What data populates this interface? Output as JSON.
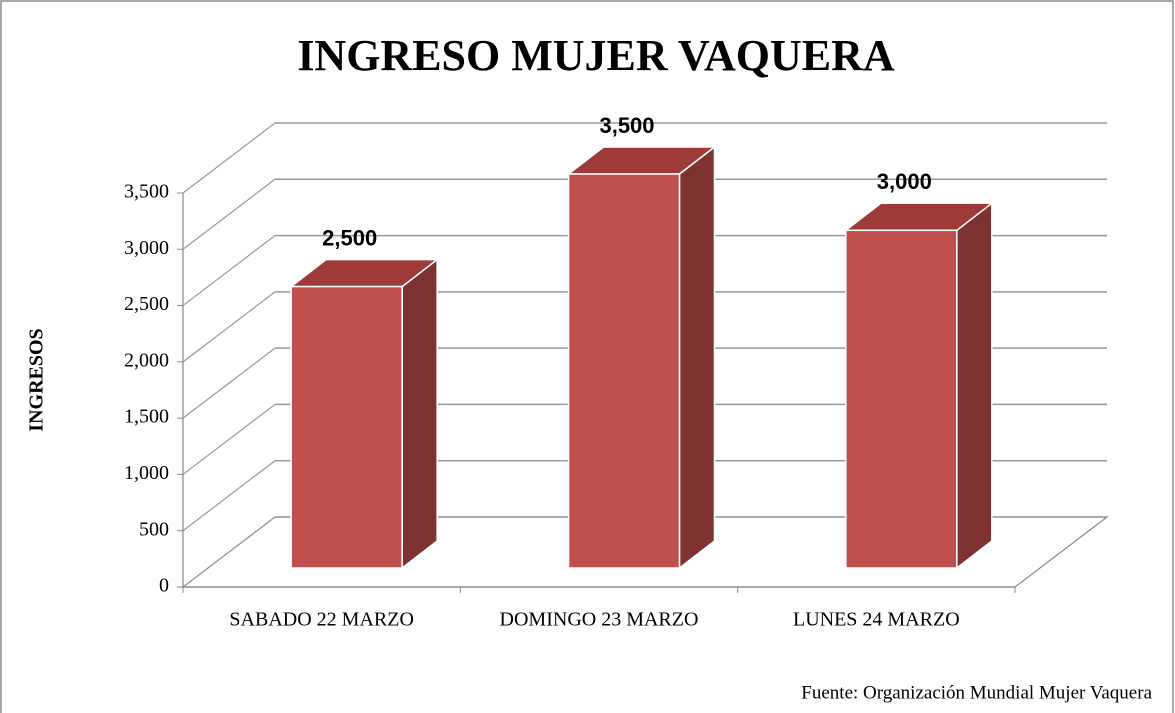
{
  "chart_data": {
    "type": "bar3d",
    "title": "INGRESO MUJER VAQUERA",
    "y_label": "INGRESOS",
    "source": "Fuente: Organización Mundial Mujer Vaquera",
    "categories": [
      "SABADO 22 MARZO",
      "DOMINGO 23 MARZO",
      "LUNES 24 MARZO"
    ],
    "values": [
      2500,
      3500,
      3000
    ],
    "value_labels": [
      "2,500",
      "3,500",
      "3,000"
    ],
    "color": "#c0504d",
    "ylim": [
      0,
      3500
    ],
    "yticks": [
      0,
      500,
      {
        "value": 1000,
        "label": "1,000"
      },
      {
        "value": 1500,
        "label": "1,500"
      },
      {
        "value": 2000,
        "label": "2,000"
      },
      {
        "value": 2500,
        "label": "2,500"
      },
      {
        "value": 3000,
        "label": "3,000"
      },
      {
        "value": 3500,
        "label": "3,500"
      }
    ],
    "grid": true
  }
}
